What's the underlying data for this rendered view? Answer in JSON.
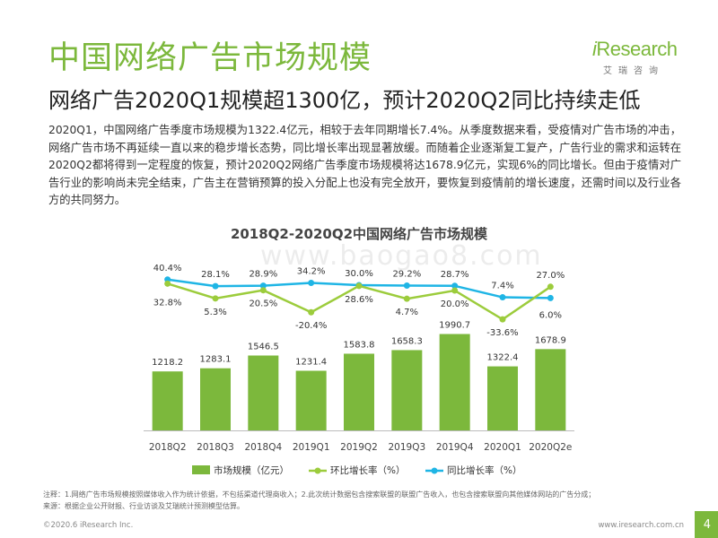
{
  "header": {
    "title": "中国网络广告市场规模",
    "subtitle": "网络广告2020Q1规模超1300亿，预计2020Q2同比持续走低"
  },
  "logo": {
    "brand_i": "i",
    "brand_rest": "Research",
    "brand_cn": "艾瑞咨询"
  },
  "body_text": "2020Q1，中国网络广告季度市场规模为1322.4亿元，相较于去年同期增长7.4%。从季度数据来看，受疫情对广告市场的冲击，网络广告市场不再延续一直以来的稳步增长态势，同比增长率出现显著放缓。而随着企业逐渐复工复产，广告行业的需求和运转在2020Q2都将得到一定程度的恢复，预计2020Q2网络广告季度市场规模将达1678.9亿元，实现6%的同比增长。但由于疫情对广告行业的影响尚未完全结束，广告主在营销预算的投入分配上也没有完全放开，要恢复到疫情前的增长速度，还需时间以及行业各方的共同努力。",
  "watermark": "www.baogao8.com",
  "chart_data": {
    "type": "bar",
    "title": "2018Q2-2020Q2中国网络广告市场规模",
    "categories": [
      "2018Q2",
      "2018Q3",
      "2018Q4",
      "2019Q1",
      "2019Q2",
      "2019Q3",
      "2019Q4",
      "2020Q1",
      "2020Q2e"
    ],
    "series": [
      {
        "name": "市场规模（亿元）",
        "type": "bar",
        "color": "#7cb83c",
        "values": [
          1218.2,
          1283.1,
          1546.5,
          1231.4,
          1583.8,
          1658.3,
          1990.7,
          1322.4,
          1678.9
        ]
      },
      {
        "name": "环比增长率（%）",
        "type": "line",
        "color": "#9ccc3c",
        "values": [
          32.8,
          5.3,
          20.5,
          -20.4,
          28.6,
          4.7,
          20.0,
          -33.6,
          27.0
        ]
      },
      {
        "name": "同比增长率（%）",
        "type": "line",
        "color": "#1fb5e5",
        "values": [
          40.4,
          28.1,
          28.9,
          34.2,
          30.0,
          29.2,
          28.7,
          7.4,
          6.0
        ]
      }
    ],
    "bar_labels": [
      "1218.2",
      "1283.1",
      "1546.5",
      "1231.4",
      "1583.8",
      "1658.3",
      "1990.7",
      "1322.4",
      "1678.9"
    ],
    "mom_labels": [
      "32.8%",
      "5.3%",
      "20.5%",
      "-20.4%",
      "28.6%",
      "4.7%",
      "20.0%",
      "-33.6%",
      "27.0%"
    ],
    "yoy_labels": [
      "40.4%",
      "28.1%",
      "28.9%",
      "34.2%",
      "30.0%",
      "29.2%",
      "28.7%",
      "7.4%",
      "6.0%"
    ],
    "legend_position": "bottom",
    "grid": false
  },
  "footer": {
    "note_line1": "注释：1.网络广告市场规模按照媒体收入作为统计依据，不包括渠道代理商收入；2.此次统计数据包含搜索联盟的联盟广告收入，也包含搜索联盟向其他媒体网站的广告分成；",
    "note_line2": "来源：根据企业公开财报、行业访谈及艾瑞统计预测模型估算。",
    "copyright": "©2020.6 iResearch Inc.",
    "url": "www.iresearch.com.cn",
    "page_number": "4"
  }
}
